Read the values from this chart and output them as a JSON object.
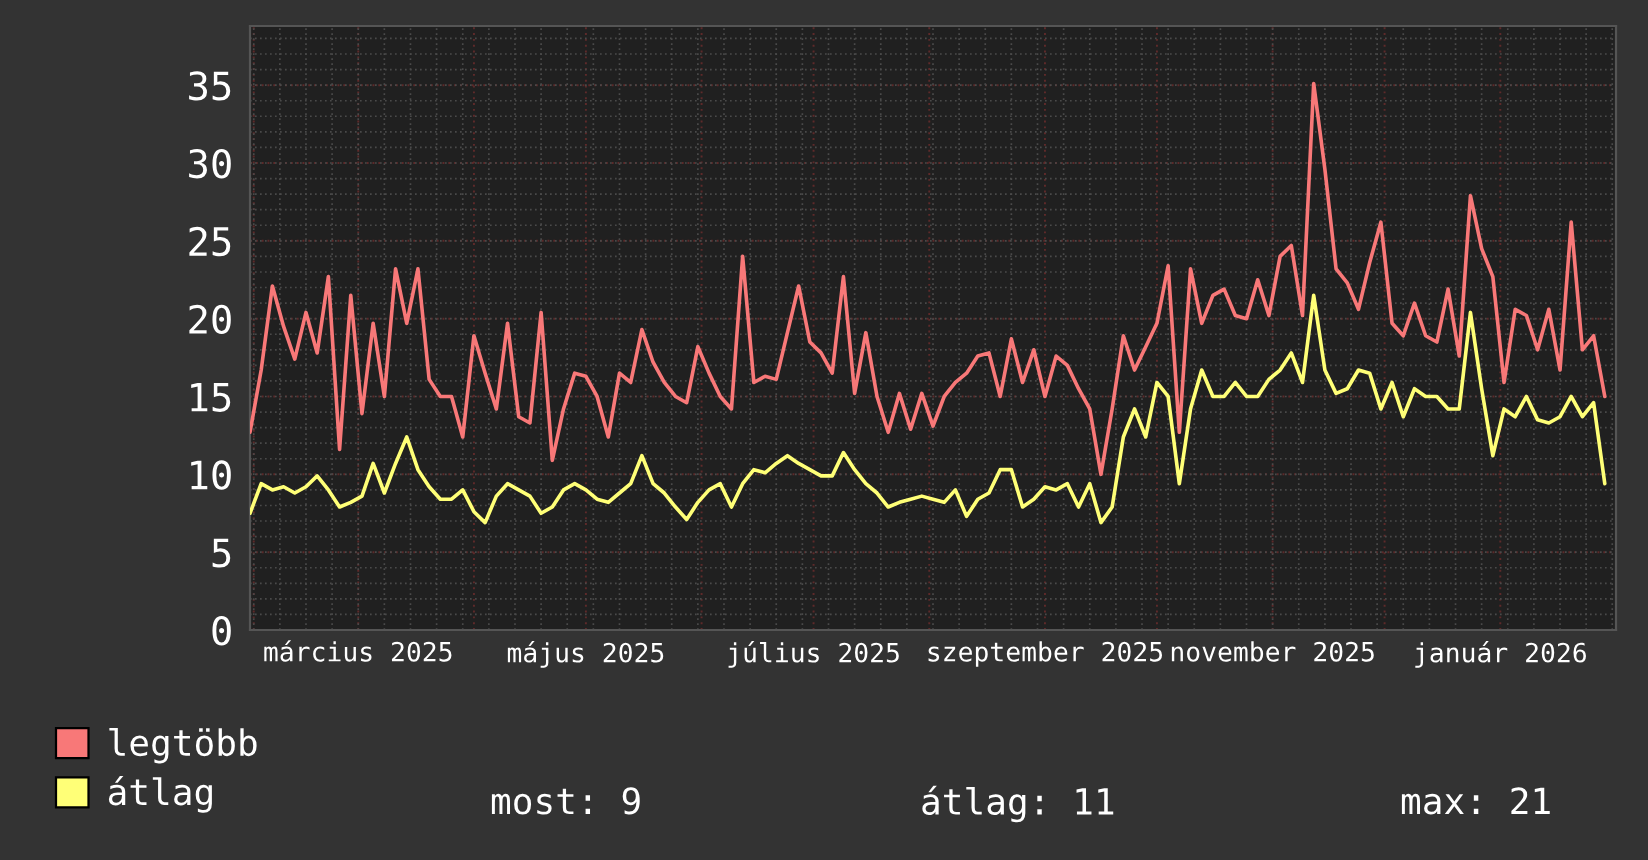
{
  "chart_data": {
    "type": "line",
    "x": [
      "2025-01-31",
      "2025-02-03",
      "2025-02-06",
      "2025-02-09",
      "2025-02-12",
      "2025-02-15",
      "2025-02-18",
      "2025-02-21",
      "2025-02-24",
      "2025-02-27",
      "2025-03-02",
      "2025-03-05",
      "2025-03-08",
      "2025-03-11",
      "2025-03-14",
      "2025-03-17",
      "2025-03-20",
      "2025-03-23",
      "2025-03-26",
      "2025-03-29",
      "2025-04-01",
      "2025-04-04",
      "2025-04-07",
      "2025-04-10",
      "2025-04-13",
      "2025-04-16",
      "2025-04-19",
      "2025-04-22",
      "2025-04-25",
      "2025-04-28",
      "2025-05-01",
      "2025-05-04",
      "2025-05-07",
      "2025-05-10",
      "2025-05-13",
      "2025-05-16",
      "2025-05-19",
      "2025-05-22",
      "2025-05-25",
      "2025-05-28",
      "2025-05-31",
      "2025-06-03",
      "2025-06-06",
      "2025-06-09",
      "2025-06-12",
      "2025-06-15",
      "2025-06-18",
      "2025-06-21",
      "2025-06-24",
      "2025-06-27",
      "2025-06-30",
      "2025-07-03",
      "2025-07-06",
      "2025-07-09",
      "2025-07-12",
      "2025-07-15",
      "2025-07-18",
      "2025-07-21",
      "2025-07-24",
      "2025-07-27",
      "2025-07-30",
      "2025-08-02",
      "2025-08-05",
      "2025-08-08",
      "2025-08-11",
      "2025-08-14",
      "2025-08-17",
      "2025-08-20",
      "2025-08-23",
      "2025-08-26",
      "2025-08-29",
      "2025-09-01",
      "2025-09-04",
      "2025-09-07",
      "2025-09-10",
      "2025-09-13",
      "2025-09-16",
      "2025-09-19",
      "2025-09-22",
      "2025-09-25",
      "2025-09-28",
      "2025-10-01",
      "2025-10-04",
      "2025-10-07",
      "2025-10-10",
      "2025-10-13",
      "2025-10-16",
      "2025-10-19",
      "2025-10-22",
      "2025-10-25",
      "2025-10-28",
      "2025-10-31",
      "2025-11-03",
      "2025-11-06",
      "2025-11-09",
      "2025-11-12",
      "2025-11-15",
      "2025-11-18",
      "2025-11-21",
      "2025-11-24",
      "2025-11-27",
      "2025-11-30",
      "2025-12-03",
      "2025-12-06",
      "2025-12-09",
      "2025-12-12",
      "2025-12-15",
      "2025-12-18",
      "2025-12-21",
      "2025-12-24",
      "2025-12-27",
      "2025-12-30",
      "2026-01-02",
      "2026-01-05",
      "2026-01-08",
      "2026-01-11",
      "2026-01-14",
      "2026-01-17",
      "2026-01-20",
      "2026-01-23",
      "2026-01-26",
      "2026-01-29"
    ],
    "series": [
      {
        "name": "legtöbb",
        "color": "#f87878",
        "values": [
          12.7,
          16.7,
          22.1,
          19.5,
          17.4,
          20.4,
          17.8,
          22.7,
          11.6,
          21.5,
          13.9,
          19.7,
          15.0,
          23.2,
          19.7,
          23.2,
          16.1,
          15.0,
          15.0,
          12.4,
          18.9,
          16.5,
          14.2,
          19.7,
          13.7,
          13.3,
          20.4,
          10.9,
          14.2,
          16.5,
          16.3,
          15.0,
          12.4,
          16.5,
          15.9,
          19.3,
          17.2,
          15.9,
          15.0,
          14.6,
          18.2,
          16.5,
          15.0,
          14.2,
          24.0,
          15.9,
          16.3,
          16.1,
          19.1,
          22.1,
          18.5,
          17.8,
          16.5,
          22.7,
          15.2,
          19.1,
          15.0,
          12.7,
          15.2,
          12.9,
          15.2,
          13.1,
          15.0,
          15.9,
          16.5,
          17.6,
          17.8,
          15.0,
          18.7,
          15.9,
          18.0,
          15.0,
          17.6,
          17.0,
          15.5,
          14.2,
          10.0,
          14.2,
          18.9,
          16.7,
          18.2,
          19.7,
          23.4,
          12.7,
          23.2,
          19.7,
          21.5,
          21.9,
          20.2,
          20.0,
          22.5,
          20.2,
          24.0,
          24.7,
          20.2,
          35.1,
          29.6,
          23.2,
          22.3,
          20.6,
          23.6,
          26.2,
          19.7,
          18.9,
          21.0,
          18.9,
          18.5,
          21.9,
          17.6,
          27.9,
          24.5,
          22.7,
          15.9,
          20.6,
          20.2,
          18.0,
          20.6,
          16.7,
          26.2,
          18.0,
          18.9,
          15.0
        ]
      },
      {
        "name": "átlag",
        "color": "#ffff77",
        "values": [
          7.5,
          9.4,
          9.0,
          9.2,
          8.8,
          9.2,
          9.9,
          9.0,
          7.9,
          8.2,
          8.6,
          10.7,
          8.8,
          10.7,
          12.4,
          10.3,
          9.2,
          8.4,
          8.4,
          9.0,
          7.6,
          6.9,
          8.6,
          9.4,
          9.0,
          8.6,
          7.5,
          7.9,
          9.0,
          9.4,
          9.0,
          8.4,
          8.2,
          8.8,
          9.4,
          11.2,
          9.4,
          8.8,
          7.9,
          7.1,
          8.2,
          9.0,
          9.4,
          7.9,
          9.4,
          10.3,
          10.1,
          10.7,
          11.2,
          10.7,
          10.3,
          9.9,
          9.9,
          11.4,
          10.3,
          9.4,
          8.8,
          7.9,
          8.2,
          8.4,
          8.6,
          8.4,
          8.2,
          9.0,
          7.3,
          8.4,
          8.8,
          10.3,
          10.3,
          7.9,
          8.4,
          9.2,
          9.0,
          9.4,
          7.9,
          9.4,
          6.9,
          7.9,
          12.4,
          14.2,
          12.4,
          15.9,
          15.0,
          9.4,
          14.2,
          16.7,
          15.0,
          15.0,
          15.9,
          15.0,
          15.0,
          16.1,
          16.7,
          17.8,
          15.9,
          21.5,
          16.7,
          15.2,
          15.5,
          16.7,
          16.5,
          14.2,
          15.9,
          13.7,
          15.5,
          15.0,
          15.0,
          14.2,
          14.2,
          20.4,
          15.5,
          11.2,
          14.2,
          13.7,
          15.0,
          13.5,
          13.3,
          13.7,
          15.0,
          13.7,
          14.6,
          9.4
        ]
      }
    ],
    "xlim": [
      "2025-01-31",
      "2026-02-01"
    ],
    "xticks": [
      {
        "value": "2025-02-01",
        "label": null
      },
      {
        "value": "2025-03-01",
        "label": "március 2025"
      },
      {
        "value": "2025-04-01",
        "label": null
      },
      {
        "value": "2025-05-01",
        "label": "május 2025"
      },
      {
        "value": "2025-06-01",
        "label": null
      },
      {
        "value": "2025-07-01",
        "label": "július 2025"
      },
      {
        "value": "2025-08-01",
        "label": null
      },
      {
        "value": "2025-09-01",
        "label": "szeptember 2025"
      },
      {
        "value": "2025-10-01",
        "label": null
      },
      {
        "value": "2025-11-01",
        "label": "november 2025"
      },
      {
        "value": "2025-12-01",
        "label": null
      },
      {
        "value": "2026-01-01",
        "label": "január 2026"
      },
      {
        "value": "2026-02-01",
        "label": null
      }
    ],
    "ylim": [
      0,
      38.8
    ],
    "yticks": [
      0,
      5,
      10,
      15,
      20,
      25,
      30,
      35
    ],
    "grid": true,
    "legend": "bottom left",
    "marker": "none",
    "line_style": "solid",
    "annotations": [
      "most: 9",
      "átlag: 11",
      "max: 21"
    ]
  }
}
